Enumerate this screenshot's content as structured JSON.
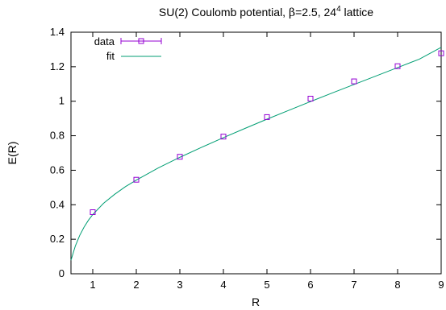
{
  "chart_data": {
    "type": "scatter",
    "title": {
      "prefix": "SU(2) Coulomb potential, ",
      "beta_symbol": "β",
      "beta_value": "=2.5, 24",
      "superscript": "4",
      "suffix": " lattice"
    },
    "xlabel": "R",
    "ylabel": "E(R)",
    "xlim": [
      0.5,
      9
    ],
    "ylim": [
      0,
      1.4
    ],
    "xticks": [
      1,
      2,
      3,
      4,
      5,
      6,
      7,
      8,
      9
    ],
    "xtick_labels": [
      "1",
      "2",
      "3",
      "4",
      "5",
      "6",
      "7",
      "8",
      "9"
    ],
    "yticks": [
      0,
      0.2,
      0.4,
      0.6,
      0.8,
      1.0,
      1.2,
      1.4
    ],
    "ytick_labels": [
      "0",
      "0.2",
      "0.4",
      "0.6",
      "0.8",
      "1",
      "1.2",
      "1.4"
    ],
    "grid": false,
    "legend_position": "top-left",
    "series": [
      {
        "name": "data",
        "style": "points-with-errorbars",
        "color": "#9400d3",
        "marker": "square",
        "x": [
          1,
          2,
          3,
          4,
          5,
          6,
          7,
          8,
          9
        ],
        "y": [
          0.357,
          0.545,
          0.678,
          0.795,
          0.908,
          1.015,
          1.115,
          1.203,
          1.278
        ]
      },
      {
        "name": "fit",
        "style": "line",
        "color": "#009e73",
        "x": [
          0.5,
          0.6,
          0.7,
          0.8,
          0.9,
          1.0,
          1.25,
          1.5,
          1.75,
          2.0,
          2.5,
          3.0,
          3.5,
          4.0,
          4.5,
          5.0,
          5.5,
          6.0,
          6.5,
          7.0,
          7.5,
          8.0,
          8.5,
          9.0
        ],
        "y": [
          0.078,
          0.161,
          0.222,
          0.27,
          0.31,
          0.343,
          0.409,
          0.46,
          0.505,
          0.543,
          0.613,
          0.675,
          0.733,
          0.789,
          0.843,
          0.896,
          0.947,
          0.998,
          1.048,
          1.097,
          1.146,
          1.195,
          1.244,
          1.312
        ]
      }
    ]
  }
}
